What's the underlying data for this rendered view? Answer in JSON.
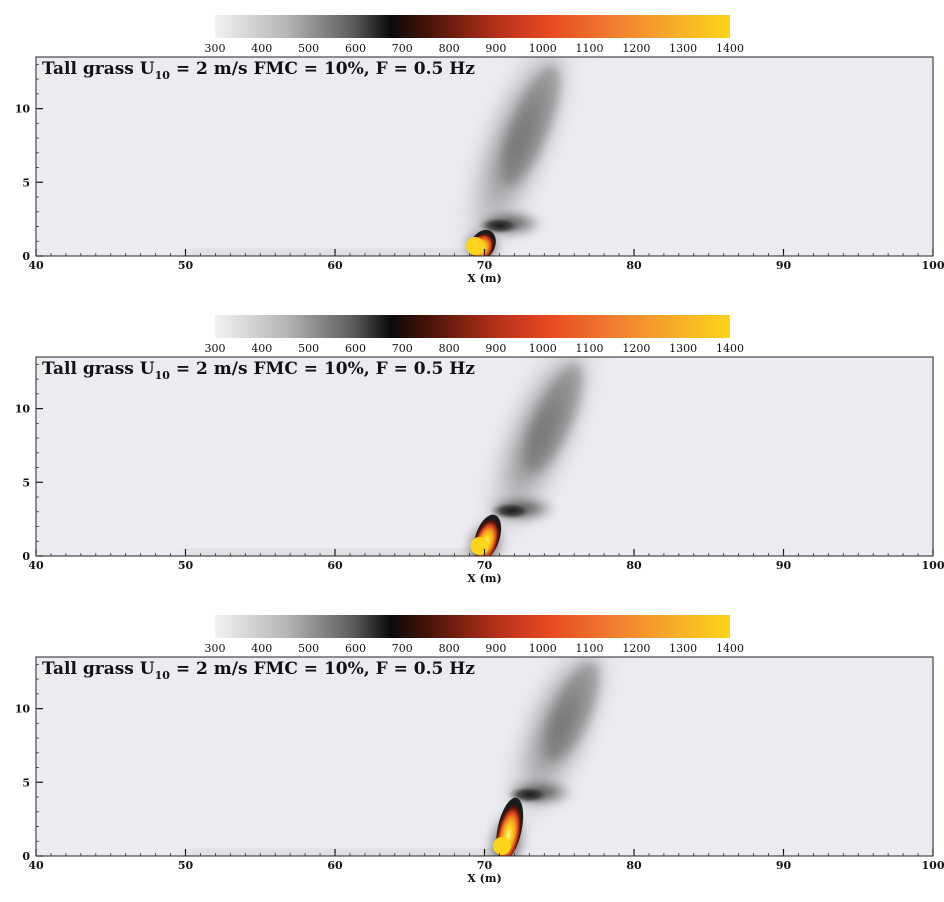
{
  "chart_data": [
    {
      "type": "heatmap",
      "title_parts": {
        "pre": "Tall grass U",
        "sub": "10",
        "post": " = 2 m/s FMC = 10%, F = 0.5 Hz"
      },
      "xlabel": "X (m)",
      "ylabel": "",
      "xlim": [
        40,
        100
      ],
      "ylim": [
        0,
        13.5
      ],
      "xticks": [
        "40",
        "50",
        "60",
        "70",
        "80",
        "90",
        "100"
      ],
      "yticks": [
        "0",
        "5",
        "10"
      ],
      "colorbar": {
        "min": 300,
        "max": 1400,
        "ticks": [
          "300",
          "400",
          "500",
          "600",
          "700",
          "800",
          "900",
          "1000",
          "1100",
          "1200",
          "1300",
          "1400"
        ]
      },
      "flame": {
        "x": 69.5,
        "y": 0.8,
        "max_temp": 1400,
        "lean_deg": 28
      },
      "plume": {
        "base_x": 70.0,
        "base_y": 2.0,
        "top_x": 74.5,
        "top_y": 13.5
      },
      "tip": {
        "x": 71.0,
        "y": 2.2
      }
    },
    {
      "type": "heatmap",
      "title_parts": {
        "pre": "Tall grass U",
        "sub": "10",
        "post": " = 2 m/s FMC = 10%, F = 0.5 Hz"
      },
      "xlabel": "X (m)",
      "ylabel": "",
      "xlim": [
        40,
        100
      ],
      "ylim": [
        0,
        13.5
      ],
      "xticks": [
        "40",
        "50",
        "60",
        "70",
        "80",
        "90",
        "100"
      ],
      "yticks": [
        "0",
        "5",
        "10"
      ],
      "colorbar": {
        "min": 300,
        "max": 1400,
        "ticks": [
          "300",
          "400",
          "500",
          "600",
          "700",
          "800",
          "900",
          "1000",
          "1100",
          "1200",
          "1300",
          "1400"
        ]
      },
      "flame": {
        "x": 69.8,
        "y": 0.9,
        "max_temp": 1400,
        "lean_deg": 18
      },
      "plume": {
        "base_x": 71.5,
        "base_y": 3.0,
        "top_x": 76.0,
        "top_y": 13.5
      },
      "tip": {
        "x": 71.8,
        "y": 3.2
      }
    },
    {
      "type": "heatmap",
      "title_parts": {
        "pre": "Tall grass U",
        "sub": "10",
        "post": " = 2 m/s FMC = 10%, F = 0.5 Hz"
      },
      "xlabel": "X (m)",
      "ylabel": "",
      "xlim": [
        40,
        100
      ],
      "ylim": [
        0,
        13.5
      ],
      "xticks": [
        "40",
        "50",
        "60",
        "70",
        "80",
        "90",
        "100"
      ],
      "yticks": [
        "0",
        "5",
        "10"
      ],
      "colorbar": {
        "min": 300,
        "max": 1400,
        "ticks": [
          "300",
          "400",
          "500",
          "600",
          "700",
          "800",
          "900",
          "1000",
          "1100",
          "1200",
          "1300",
          "1400"
        ]
      },
      "flame": {
        "x": 71.3,
        "y": 1.2,
        "max_temp": 1400,
        "lean_deg": 12
      },
      "plume": {
        "base_x": 73.0,
        "base_y": 4.0,
        "top_x": 77.0,
        "top_y": 13.5
      },
      "tip": {
        "x": 73.0,
        "y": 4.3
      }
    }
  ]
}
